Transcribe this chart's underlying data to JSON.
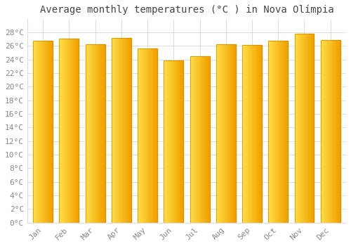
{
  "title": "Average monthly temperatures (°C ) in Nova Olímpia",
  "months": [
    "Jan",
    "Feb",
    "Mar",
    "Apr",
    "May",
    "Jun",
    "Jul",
    "Aug",
    "Sep",
    "Oct",
    "Nov",
    "Dec"
  ],
  "values": [
    26.8,
    27.1,
    26.3,
    27.2,
    25.6,
    23.9,
    24.5,
    26.3,
    26.2,
    26.8,
    27.8,
    26.9
  ],
  "bar_color_left": "#FFDD44",
  "bar_color_right": "#F0A000",
  "bar_color_edge": "#CC8800",
  "ylim": [
    0,
    30
  ],
  "yticks": [
    0,
    2,
    4,
    6,
    8,
    10,
    12,
    14,
    16,
    18,
    20,
    22,
    24,
    26,
    28
  ],
  "background_color": "#FFFFFF",
  "plot_bg_color": "#FFFFFF",
  "grid_color": "#DDDDDD",
  "title_fontsize": 10,
  "tick_fontsize": 8,
  "font_color": "#888888"
}
